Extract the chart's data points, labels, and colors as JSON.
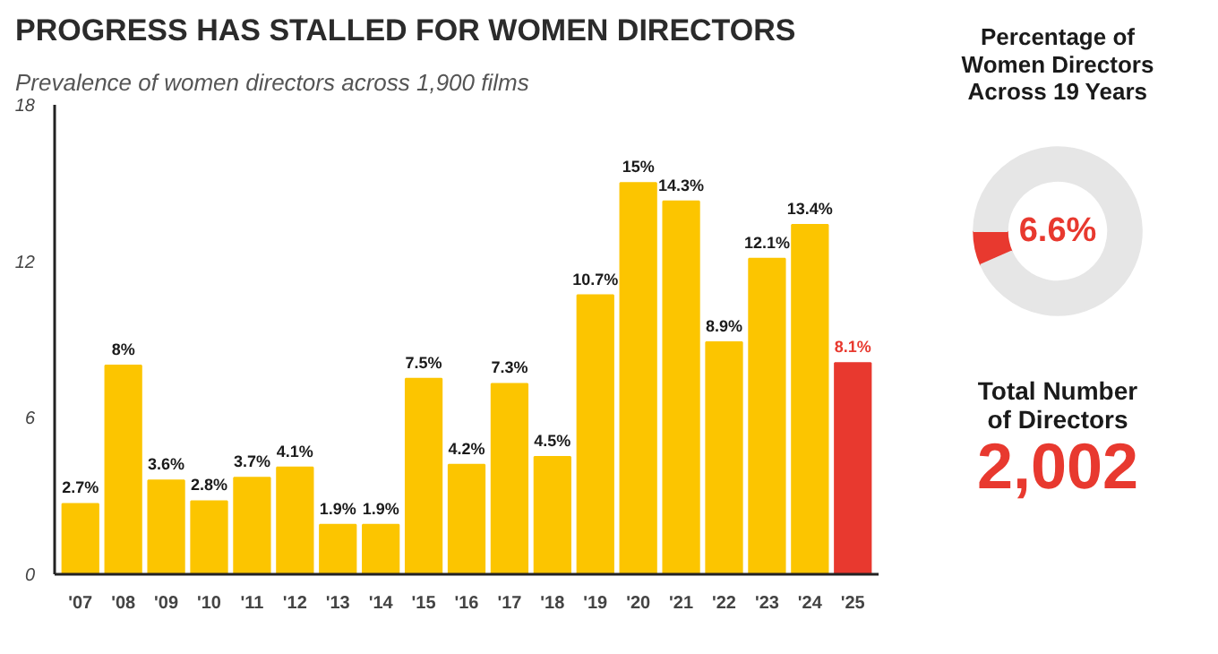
{
  "chart_data": [
    {
      "type": "bar",
      "title": "PROGRESS HAS STALLED FOR WOMEN DIRECTORS",
      "subtitle": "Prevalence of women directors across 1,900 films",
      "categories": [
        "'07",
        "'08",
        "'09",
        "'10",
        "'11",
        "'12",
        "'13",
        "'14",
        "'15",
        "'16",
        "'17",
        "'18",
        "'19",
        "'20",
        "'21",
        "'22",
        "'23",
        "'24",
        "'25"
      ],
      "values": [
        2.7,
        8,
        3.6,
        2.8,
        3.7,
        4.1,
        1.9,
        1.9,
        7.5,
        4.2,
        7.3,
        4.5,
        10.7,
        15,
        14.3,
        8.9,
        12.1,
        13.4,
        8.1
      ],
      "value_labels": [
        "2.7%",
        "8%",
        "3.6%",
        "2.8%",
        "3.7%",
        "4.1%",
        "1.9%",
        "1.9%",
        "7.5%",
        "4.2%",
        "7.3%",
        "4.5%",
        "10.7%",
        "15%",
        "14.3%",
        "8.9%",
        "12.1%",
        "13.4%",
        "8.1%"
      ],
      "colors": [
        "#fcc500",
        "#fcc500",
        "#fcc500",
        "#fcc500",
        "#fcc500",
        "#fcc500",
        "#fcc500",
        "#fcc500",
        "#fcc500",
        "#fcc500",
        "#fcc500",
        "#fcc500",
        "#fcc500",
        "#fcc500",
        "#fcc500",
        "#fcc500",
        "#fcc500",
        "#fcc500",
        "#e8392f"
      ],
      "ylim": [
        0,
        18
      ],
      "yticks": [
        0,
        6,
        12,
        18
      ],
      "grid": false
    },
    {
      "type": "donut",
      "title": "Percentage of\nWomen Directors\nAcross 19 Years",
      "categories": [
        null,
        null
      ],
      "values": [
        6.6,
        93.4
      ],
      "colors": [
        "#e8392f",
        "#e6e6e6"
      ],
      "annotations": [
        "6.6%"
      ]
    },
    {
      "type": "other",
      "title": "Total Number\nof Directors",
      "annotations": [
        "2,002"
      ]
    }
  ]
}
